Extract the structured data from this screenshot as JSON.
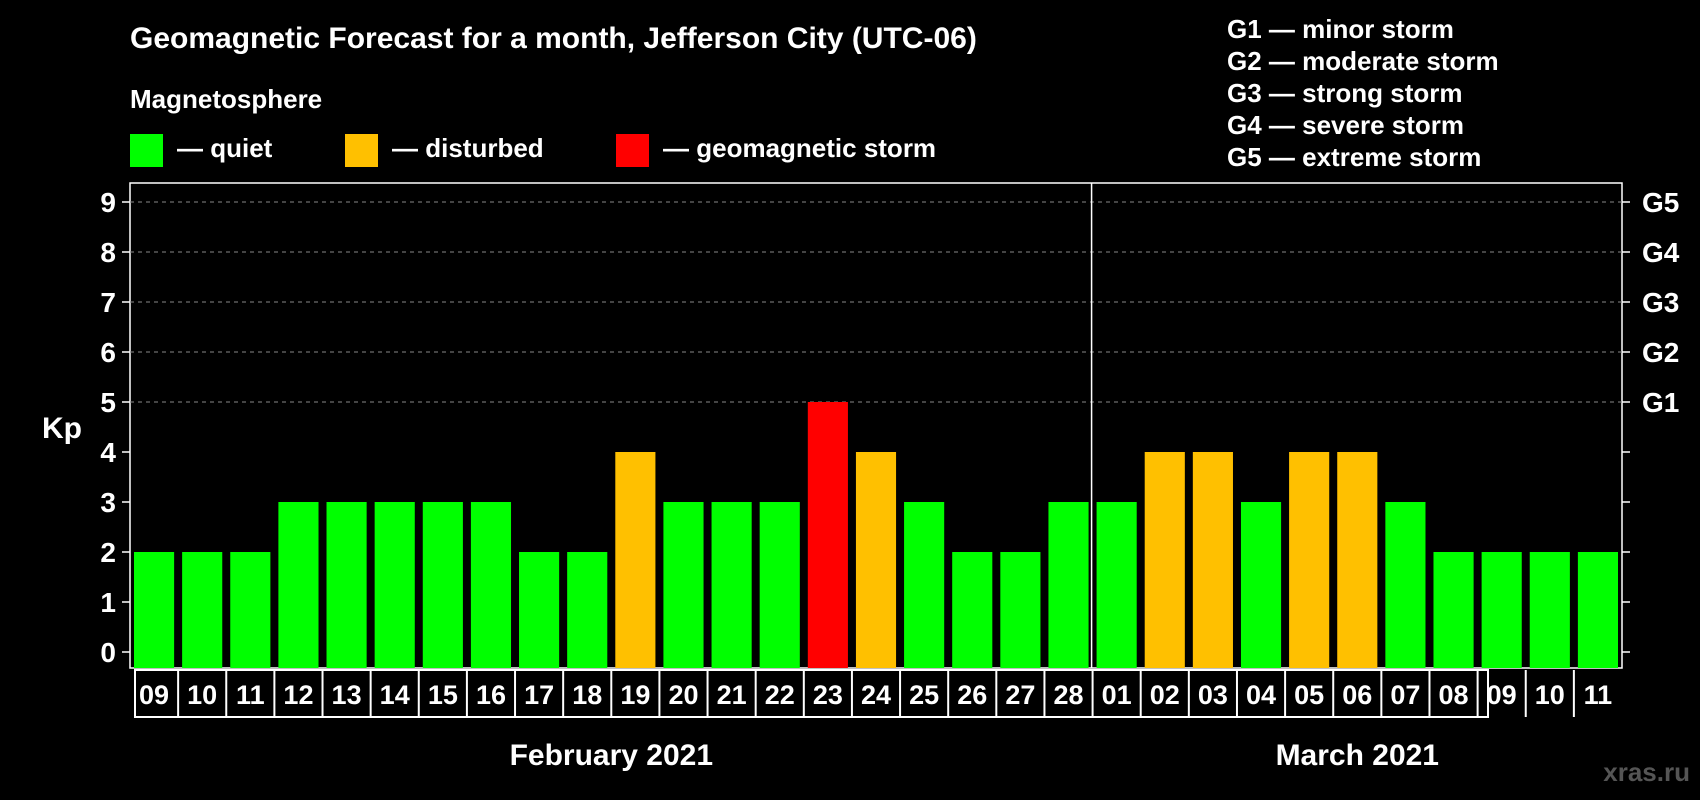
{
  "title": "Geomagnetic Forecast for a month, Jefferson City (UTC-06)",
  "subtitle": "Magnetosphere",
  "legend": [
    {
      "label": "— quiet",
      "color": "#00ff00"
    },
    {
      "label": "— disturbed",
      "color": "#ffc000"
    },
    {
      "label": "— geomagnetic storm",
      "color": "#ff0000"
    }
  ],
  "g_levels": [
    "G1 — minor storm",
    "G2 — moderate storm",
    "G3 — strong storm",
    "G4 — severe storm",
    "G5 — extreme storm"
  ],
  "watermark": "xras.ru",
  "colors": {
    "quiet": "#00ff00",
    "disturbed": "#ffc000",
    "storm": "#ff0000",
    "background": "#000000"
  },
  "chart_data": {
    "type": "bar",
    "ylabel": "Kp",
    "ylim": [
      0,
      9
    ],
    "yticks": [
      0,
      1,
      2,
      3,
      4,
      5,
      6,
      7,
      8,
      9
    ],
    "right_tick_labels": [
      {
        "kp": 5,
        "label": "G1"
      },
      {
        "kp": 6,
        "label": "G2"
      },
      {
        "kp": 7,
        "label": "G3"
      },
      {
        "kp": 8,
        "label": "G4"
      },
      {
        "kp": 9,
        "label": "G5"
      }
    ],
    "grid": "dashed horizontal at Kp 5-9",
    "months": [
      {
        "label": "February 2021",
        "days": [
          "09",
          "10",
          "11",
          "12",
          "13",
          "14",
          "15",
          "16",
          "17",
          "18",
          "19",
          "20",
          "21",
          "22",
          "23",
          "24",
          "25",
          "26",
          "27",
          "28"
        ]
      },
      {
        "label": "March 2021",
        "days": [
          "01",
          "02",
          "03",
          "04",
          "05",
          "06",
          "07",
          "08",
          "09",
          "10",
          "11"
        ]
      }
    ],
    "categories": [
      "09",
      "10",
      "11",
      "12",
      "13",
      "14",
      "15",
      "16",
      "17",
      "18",
      "19",
      "20",
      "21",
      "22",
      "23",
      "24",
      "25",
      "26",
      "27",
      "28",
      "01",
      "02",
      "03",
      "04",
      "05",
      "06",
      "07",
      "08",
      "09",
      "10",
      "11"
    ],
    "values": [
      2,
      2,
      2,
      3,
      3,
      3,
      3,
      3,
      2,
      2,
      4,
      3,
      3,
      3,
      5,
      4,
      3,
      2,
      2,
      3,
      3,
      4,
      4,
      3,
      4,
      4,
      3,
      2,
      2,
      2,
      2
    ],
    "status": [
      "quiet",
      "quiet",
      "quiet",
      "quiet",
      "quiet",
      "quiet",
      "quiet",
      "quiet",
      "quiet",
      "quiet",
      "disturbed",
      "quiet",
      "quiet",
      "quiet",
      "storm",
      "disturbed",
      "quiet",
      "quiet",
      "quiet",
      "quiet",
      "quiet",
      "disturbed",
      "disturbed",
      "quiet",
      "disturbed",
      "disturbed",
      "quiet",
      "quiet",
      "quiet",
      "quiet",
      "quiet"
    ]
  }
}
